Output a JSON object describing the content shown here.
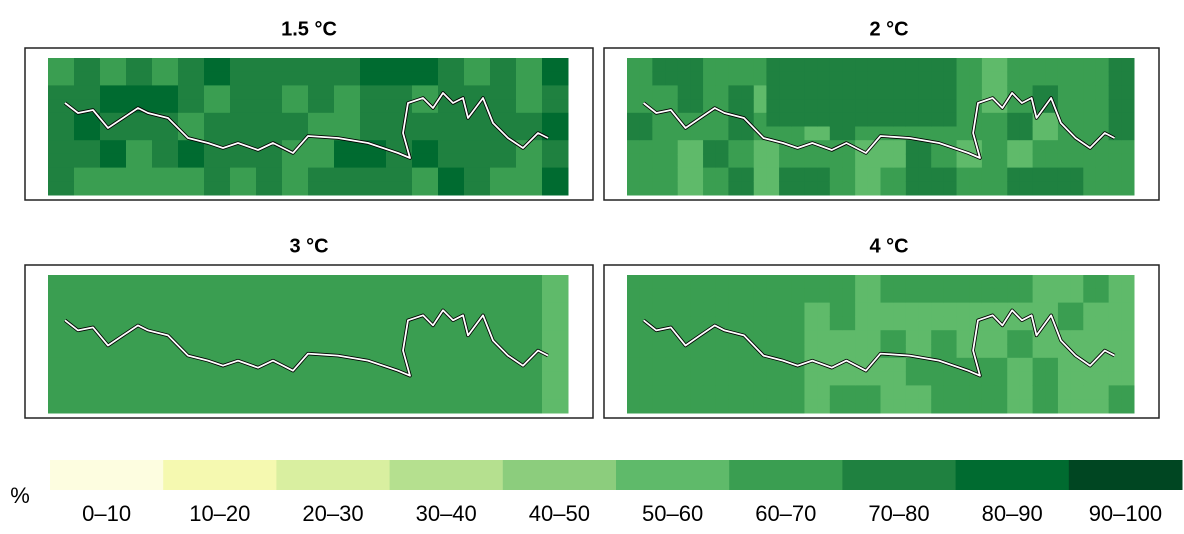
{
  "panels": [
    {
      "title": "1.5 °C"
    },
    {
      "title": "2 °C"
    },
    {
      "title": "3 °C"
    },
    {
      "title": "4 °C"
    }
  ],
  "legend": {
    "unit": "%",
    "items": [
      {
        "label": "0–10",
        "color": "#fdfde0"
      },
      {
        "label": "10–20",
        "color": "#f5f9b0"
      },
      {
        "label": "20–30",
        "color": "#d9efa0"
      },
      {
        "label": "30–40",
        "color": "#b5e08f"
      },
      {
        "label": "40–50",
        "color": "#8ccd7d"
      },
      {
        "label": "50–60",
        "color": "#5fba6a"
      },
      {
        "label": "60–70",
        "color": "#3a9e51"
      },
      {
        "label": "70–80",
        "color": "#1f8140"
      },
      {
        "label": "80–90",
        "color": "#006b30"
      },
      {
        "label": "90–100",
        "color": "#004622"
      }
    ]
  }
}
